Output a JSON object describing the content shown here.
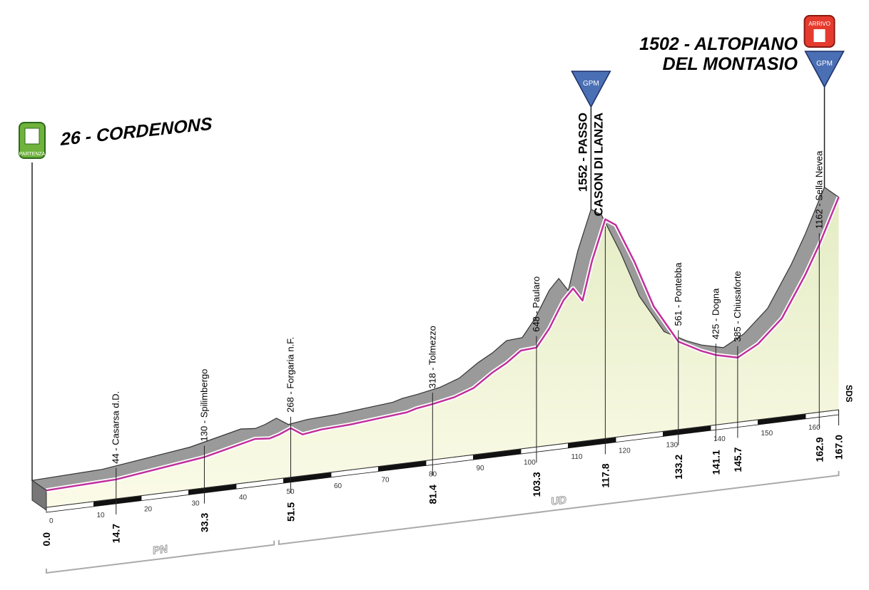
{
  "start": {
    "label": "26 - CORDENONS",
    "badge": "PARTENZA",
    "km": "0.0"
  },
  "finish": {
    "label": [
      "1502 - ALTOPIANO",
      "DEL MONTASIO"
    ],
    "badge": "ARRIVO",
    "gpm": "GPM",
    "km": "167.0"
  },
  "summit": {
    "label": [
      "1552 - PASSO",
      "CASON DI LANZA"
    ],
    "gpm": "GPM",
    "km": "117.8"
  },
  "waypoints": [
    {
      "km": "14.7",
      "label": "44 - Casarsa d.D."
    },
    {
      "km": "33.3",
      "label": "130 - Spilimbergo"
    },
    {
      "km": "51.5",
      "label": "268 - Forgaria n.F."
    },
    {
      "km": "81.4",
      "label": "318 - Tolmezzo"
    },
    {
      "km": "103.3",
      "label": "648 - Paularo"
    },
    {
      "km": "133.2",
      "label": "561 - Pontebba"
    },
    {
      "km": "141.1",
      "label": "425 - Dogna"
    },
    {
      "km": "145.7",
      "label": "385 - Chiusaforte"
    },
    {
      "km": "162.9",
      "label": "1162 - Sella Nevea"
    }
  ],
  "scale_ticks": [
    0,
    10,
    20,
    30,
    40,
    50,
    60,
    70,
    80,
    90,
    100,
    110,
    120,
    130,
    140,
    150,
    160
  ],
  "provinces": [
    {
      "label": "PN",
      "from": "0.0",
      "to": "48"
    },
    {
      "label": "UD",
      "from": "49",
      "to": "167.0"
    }
  ],
  "side_label": "SDS",
  "profile": {
    "km": [
      0,
      14.7,
      33.3,
      44,
      47,
      49,
      51.5,
      54,
      58,
      64,
      70,
      76,
      78,
      81.4,
      86,
      90,
      94,
      97,
      100,
      103.3,
      106,
      109,
      111,
      113,
      115,
      117.8,
      120,
      124,
      128,
      133.2,
      138,
      141.1,
      145.7,
      150,
      155,
      160,
      162.9,
      167
    ],
    "elevation": [
      26,
      44,
      130,
      220,
      210,
      230,
      268,
      210,
      230,
      240,
      260,
      280,
      300,
      318,
      350,
      400,
      500,
      560,
      640,
      648,
      780,
      980,
      1060,
      960,
      1250,
      1552,
      1500,
      1200,
      850,
      561,
      470,
      425,
      385,
      470,
      640,
      950,
      1162,
      1502
    ]
  }
}
